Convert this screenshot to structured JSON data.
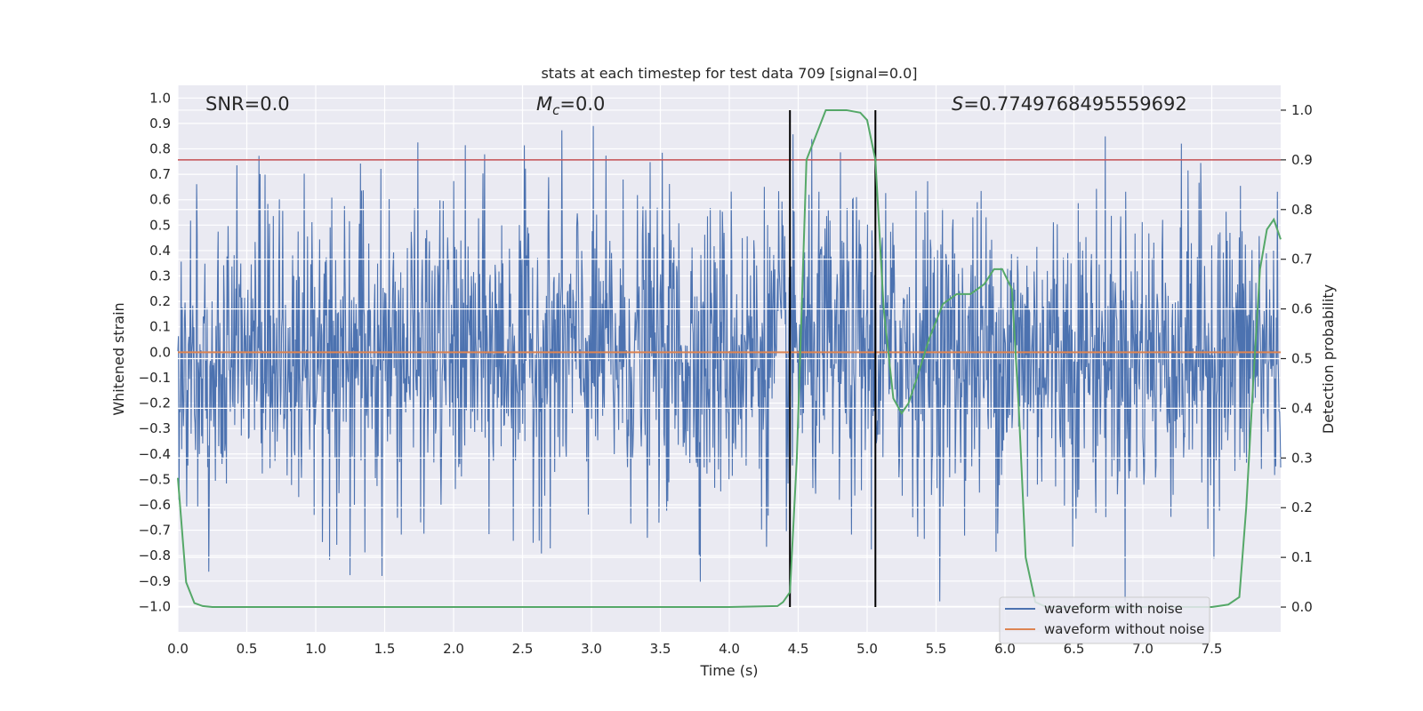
{
  "chart_data": {
    "type": "line",
    "title": "stats at each timestep for test data 709 [signal=0.0]",
    "xlabel": "Time (s)",
    "ylabel_left": "Whitened strain",
    "ylabel_right": "Detection probability",
    "xlim": [
      0.0,
      8.0
    ],
    "ylim_left": [
      -1.1,
      1.05
    ],
    "ylim_right": [
      -0.05,
      1.05
    ],
    "x_ticks": [
      "0.0",
      "0.5",
      "1.0",
      "1.5",
      "2.0",
      "2.5",
      "3.0",
      "3.5",
      "4.0",
      "4.5",
      "5.0",
      "5.5",
      "6.0",
      "6.5",
      "7.0",
      "7.5"
    ],
    "y_ticks_left": [
      "1.0",
      "0.9",
      "0.8",
      "0.7",
      "0.6",
      "0.5",
      "0.4",
      "0.3",
      "0.2",
      "0.1",
      "0.0",
      "-0.1",
      "-0.2",
      "-0.3",
      "-0.4",
      "-0.5",
      "-0.6",
      "-0.7",
      "-0.8",
      "-0.9",
      "-1.0"
    ],
    "y_ticks_right": [
      "1.0",
      "0.9",
      "0.8",
      "0.7",
      "0.6",
      "0.5",
      "0.4",
      "0.3",
      "0.2",
      "0.1",
      "0.0"
    ],
    "annotations": {
      "snr": "SNR=0.0",
      "mc_symbol": "M",
      "mc_sub": "c",
      "mc_value": "=0.0",
      "s_symbol": "S",
      "s_value": "=0.7749768495559692"
    },
    "threshold": {
      "value": 0.9,
      "axis": "right",
      "color": "#c44e52"
    },
    "vertical_markers": [
      4.44,
      5.06
    ],
    "series": [
      {
        "name": "waveform with noise",
        "axis": "left",
        "color": "#4c72b0",
        "amplitude_std": 0.3,
        "n_points": 2000
      },
      {
        "name": "waveform without noise",
        "axis": "left",
        "color": "#dd8452",
        "constant_value": 0.0
      },
      {
        "name": "Detection probability",
        "axis": "right",
        "color": "#55a868",
        "x": [
          0.0,
          0.06,
          0.12,
          0.18,
          0.25,
          0.4,
          1.0,
          2.0,
          3.0,
          4.0,
          4.35,
          4.39,
          4.44,
          4.49,
          4.56,
          4.7,
          4.85,
          4.95,
          5.0,
          5.06,
          5.12,
          5.19,
          5.25,
          5.3,
          5.36,
          5.45,
          5.55,
          5.65,
          5.75,
          5.85,
          5.92,
          5.98,
          6.05,
          6.1,
          6.15,
          6.22,
          6.3,
          6.5,
          7.0,
          7.5,
          7.62,
          7.7,
          7.75,
          7.8,
          7.85,
          7.9,
          7.95,
          8.0
        ],
        "y": [
          0.26,
          0.05,
          0.008,
          0.002,
          0.0,
          0.0,
          0.0,
          0.0,
          0.0,
          0.0,
          0.002,
          0.01,
          0.03,
          0.3,
          0.9,
          1.0,
          1.0,
          0.995,
          0.98,
          0.9,
          0.6,
          0.42,
          0.39,
          0.41,
          0.46,
          0.54,
          0.61,
          0.63,
          0.63,
          0.65,
          0.68,
          0.68,
          0.64,
          0.4,
          0.1,
          0.01,
          0.0,
          0.0,
          0.0,
          0.0,
          0.005,
          0.02,
          0.2,
          0.45,
          0.68,
          0.76,
          0.78,
          0.74
        ]
      }
    ],
    "legend": {
      "location": "lower-right",
      "entries": [
        "waveform with noise",
        "waveform without noise"
      ]
    }
  }
}
